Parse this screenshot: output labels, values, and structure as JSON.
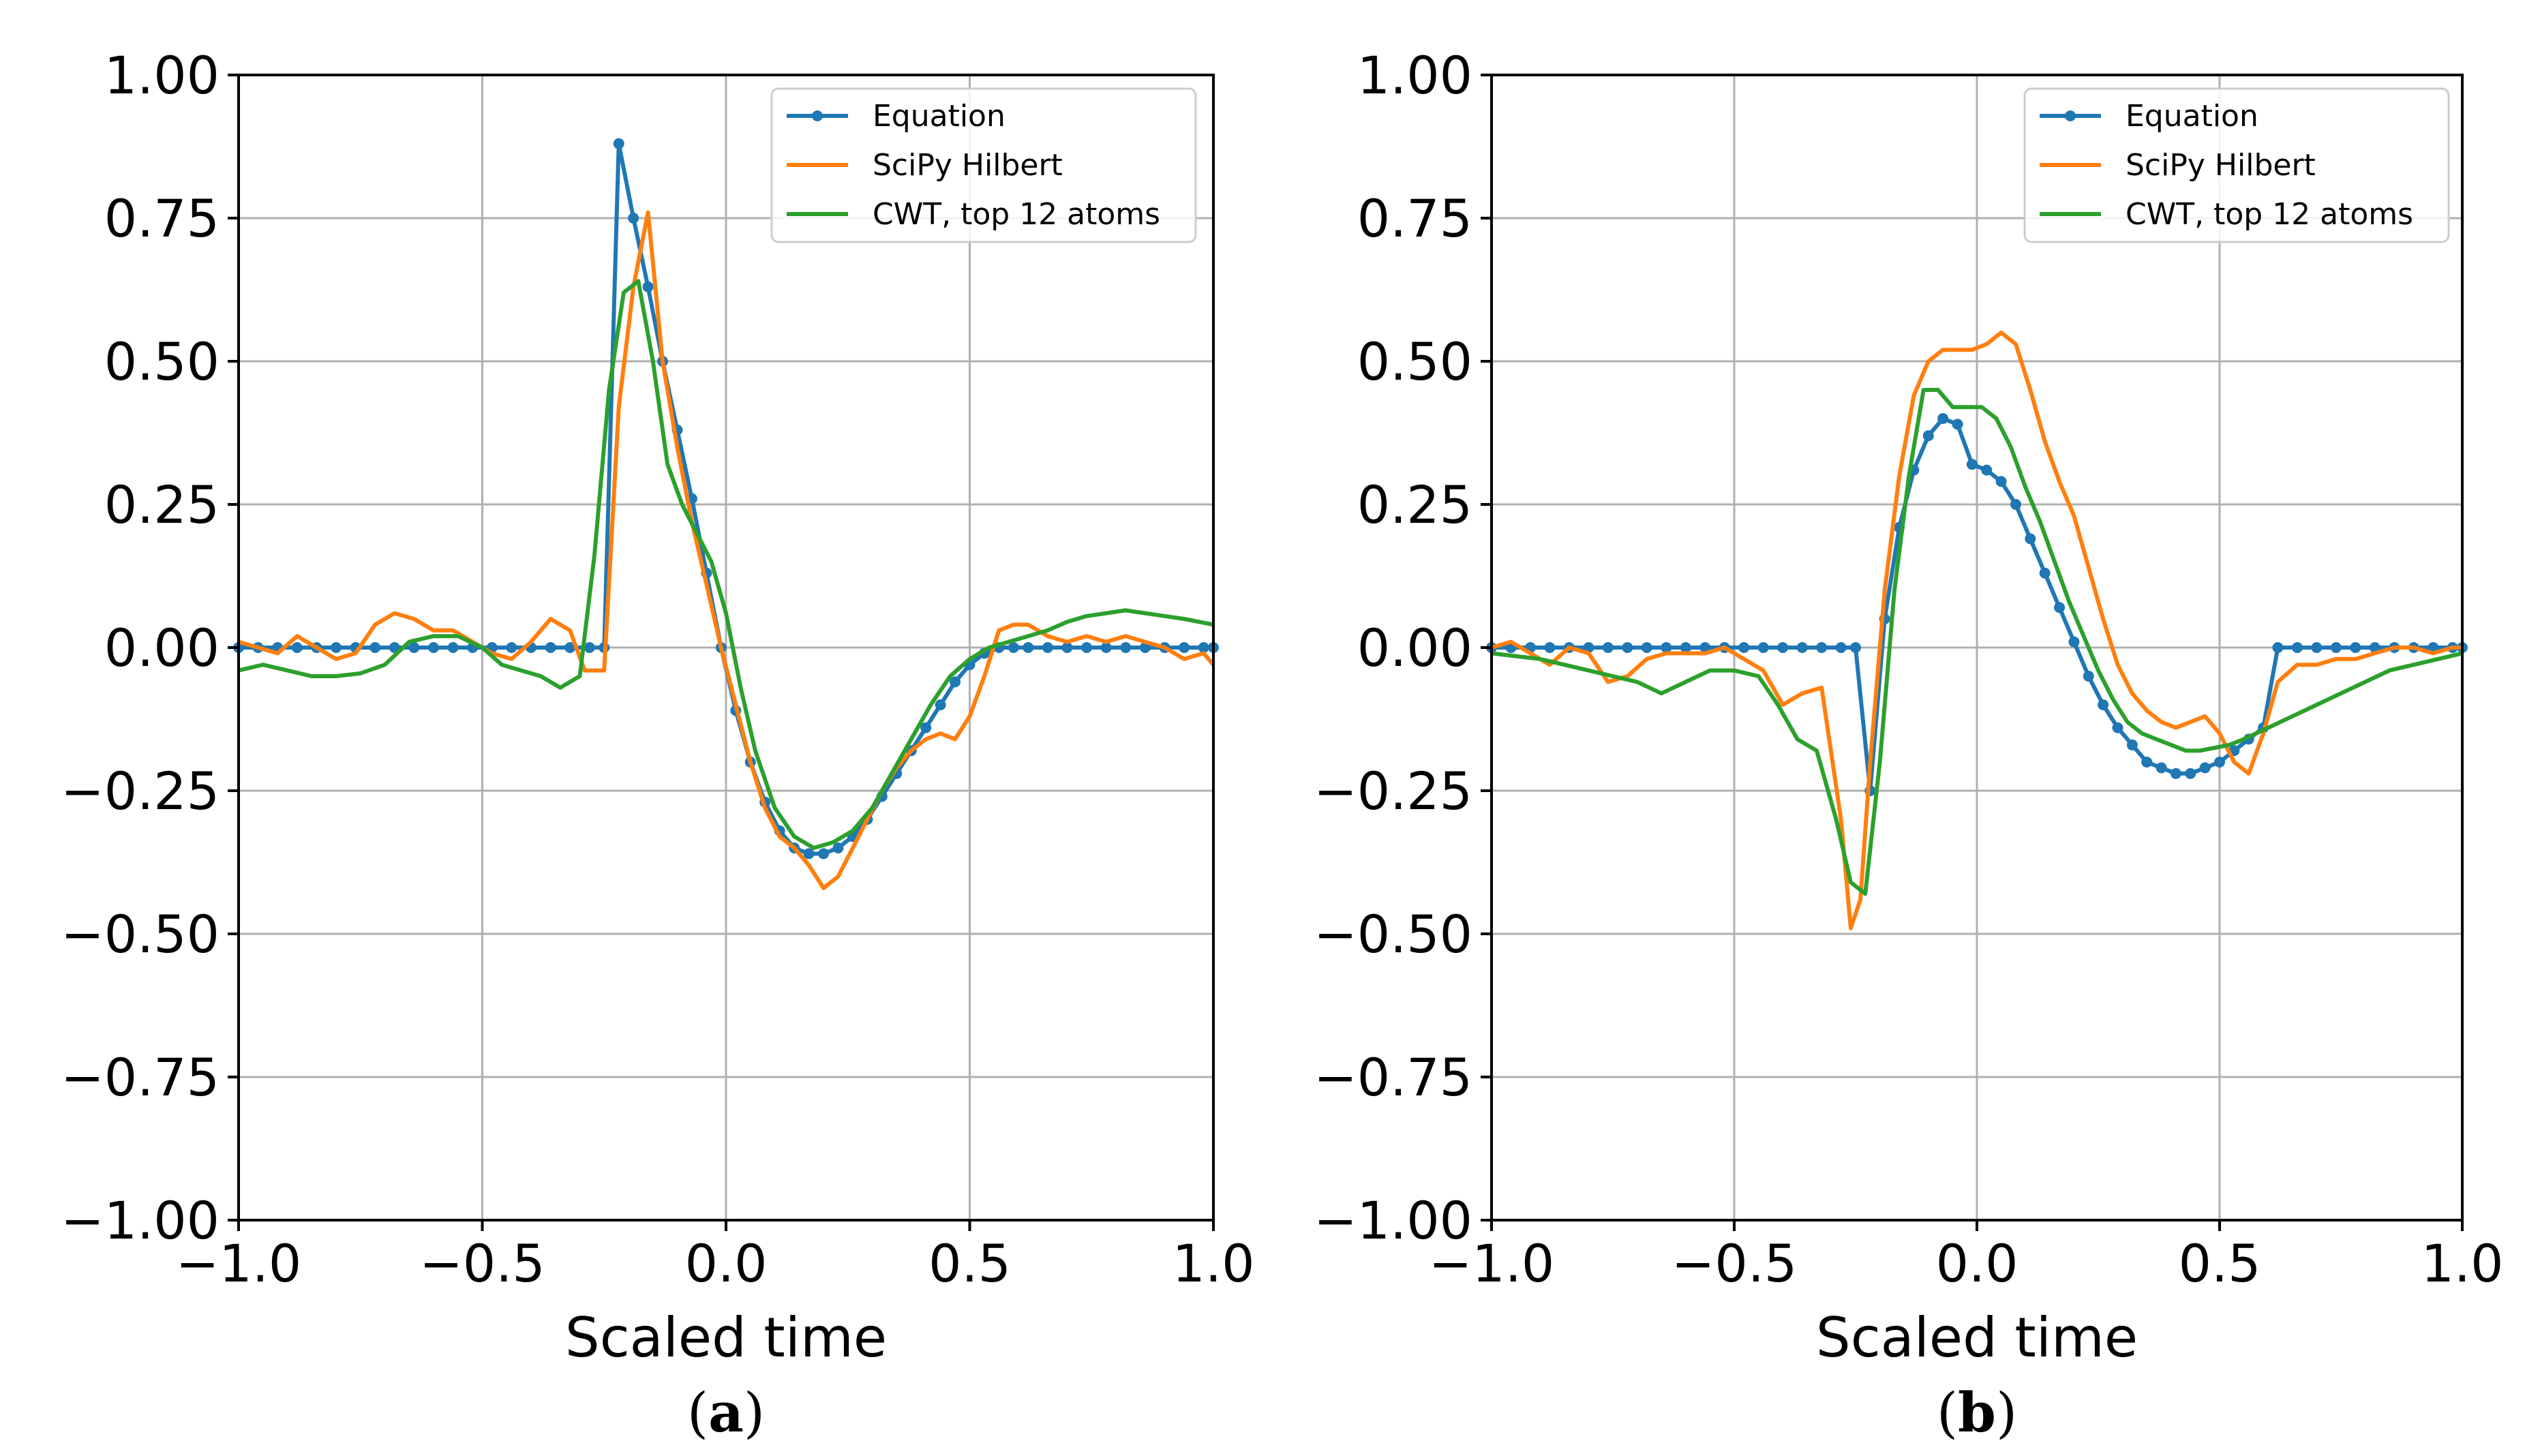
{
  "chart_data": [
    {
      "type": "line",
      "panel_caption": "a",
      "title": "",
      "xlabel": "Scaled time",
      "ylabel": "",
      "xlim": [
        -1.0,
        1.0
      ],
      "ylim": [
        -1.0,
        1.0
      ],
      "xticks": [
        -1.0,
        -0.5,
        0.0,
        0.5,
        1.0
      ],
      "yticks": [
        -1.0,
        -0.75,
        -0.5,
        -0.25,
        0.0,
        0.25,
        0.5,
        0.75,
        1.0
      ],
      "xtick_labels": [
        "−1.0",
        "−0.5",
        "0.0",
        "0.5",
        "1.0"
      ],
      "ytick_labels": [
        "−1.00",
        "−0.75",
        "−0.50",
        "−0.25",
        "0.00",
        "0.25",
        "0.50",
        "0.75",
        "1.00"
      ],
      "grid": true,
      "legend_position": "top-right",
      "series": [
        {
          "name": "Equation",
          "color": "#1f77b4",
          "marker": true,
          "x": [
            -1.0,
            -0.96,
            -0.92,
            -0.88,
            -0.84,
            -0.8,
            -0.76,
            -0.72,
            -0.68,
            -0.64,
            -0.6,
            -0.56,
            -0.52,
            -0.48,
            -0.44,
            -0.4,
            -0.36,
            -0.32,
            -0.28,
            -0.25,
            -0.22,
            -0.19,
            -0.16,
            -0.13,
            -0.1,
            -0.07,
            -0.04,
            -0.01,
            0.02,
            0.05,
            0.08,
            0.11,
            0.14,
            0.17,
            0.2,
            0.23,
            0.26,
            0.29,
            0.32,
            0.35,
            0.38,
            0.41,
            0.44,
            0.47,
            0.5,
            0.53,
            0.56,
            0.59,
            0.62,
            0.66,
            0.7,
            0.74,
            0.78,
            0.82,
            0.86,
            0.9,
            0.94,
            0.98,
            1.0
          ],
          "y": [
            0,
            0,
            0,
            0,
            0,
            0,
            0,
            0,
            0,
            0,
            0,
            0,
            0,
            0,
            0,
            0,
            0,
            0,
            0,
            0,
            0.88,
            0.75,
            0.63,
            0.5,
            0.38,
            0.26,
            0.13,
            0.0,
            -0.11,
            -0.2,
            -0.27,
            -0.32,
            -0.35,
            -0.36,
            -0.36,
            -0.35,
            -0.33,
            -0.3,
            -0.26,
            -0.22,
            -0.18,
            -0.14,
            -0.1,
            -0.06,
            -0.03,
            -0.01,
            0,
            0,
            0,
            0,
            0,
            0,
            0,
            0,
            0,
            0,
            0,
            0,
            0
          ]
        },
        {
          "name": "SciPy Hilbert",
          "color": "#ff7f0e",
          "marker": false,
          "x": [
            -1.0,
            -0.96,
            -0.92,
            -0.88,
            -0.84,
            -0.8,
            -0.76,
            -0.72,
            -0.68,
            -0.64,
            -0.6,
            -0.56,
            -0.52,
            -0.48,
            -0.44,
            -0.4,
            -0.36,
            -0.32,
            -0.29,
            -0.25,
            -0.22,
            -0.19,
            -0.16,
            -0.13,
            -0.1,
            -0.07,
            -0.04,
            -0.01,
            0.02,
            0.05,
            0.08,
            0.11,
            0.14,
            0.17,
            0.2,
            0.23,
            0.26,
            0.29,
            0.32,
            0.35,
            0.38,
            0.41,
            0.44,
            0.47,
            0.5,
            0.53,
            0.56,
            0.59,
            0.62,
            0.66,
            0.7,
            0.74,
            0.78,
            0.82,
            0.86,
            0.9,
            0.94,
            0.98,
            1.0
          ],
          "y": [
            0.01,
            0.0,
            -0.01,
            0.02,
            0.0,
            -0.02,
            -0.01,
            0.04,
            0.06,
            0.05,
            0.03,
            0.03,
            0.01,
            -0.01,
            -0.02,
            0.01,
            0.05,
            0.03,
            -0.04,
            -0.04,
            0.42,
            0.63,
            0.76,
            0.5,
            0.35,
            0.22,
            0.11,
            0.0,
            -0.1,
            -0.2,
            -0.28,
            -0.33,
            -0.35,
            -0.38,
            -0.42,
            -0.4,
            -0.35,
            -0.3,
            -0.25,
            -0.21,
            -0.18,
            -0.16,
            -0.15,
            -0.16,
            -0.12,
            -0.05,
            0.03,
            0.04,
            0.04,
            0.02,
            0.01,
            0.02,
            0.01,
            0.02,
            0.01,
            0.0,
            -0.02,
            -0.01,
            -0.03
          ]
        },
        {
          "name": "CWT, top 12 atoms",
          "color": "#2ca02c",
          "marker": false,
          "x": [
            -1.0,
            -0.95,
            -0.9,
            -0.85,
            -0.8,
            -0.75,
            -0.7,
            -0.65,
            -0.6,
            -0.55,
            -0.5,
            -0.46,
            -0.42,
            -0.38,
            -0.34,
            -0.3,
            -0.27,
            -0.24,
            -0.21,
            -0.18,
            -0.15,
            -0.12,
            -0.09,
            -0.06,
            -0.03,
            0.0,
            0.03,
            0.06,
            0.1,
            0.14,
            0.18,
            0.22,
            0.26,
            0.3,
            0.34,
            0.38,
            0.42,
            0.46,
            0.5,
            0.54,
            0.58,
            0.62,
            0.66,
            0.7,
            0.74,
            0.78,
            0.82,
            0.86,
            0.9,
            0.94,
            1.0
          ],
          "y": [
            -0.04,
            -0.03,
            -0.04,
            -0.05,
            -0.05,
            -0.045,
            -0.03,
            0.01,
            0.02,
            0.02,
            0.0,
            -0.03,
            -0.04,
            -0.05,
            -0.07,
            -0.05,
            0.16,
            0.45,
            0.62,
            0.64,
            0.5,
            0.32,
            0.25,
            0.2,
            0.15,
            0.06,
            -0.07,
            -0.18,
            -0.28,
            -0.33,
            -0.35,
            -0.34,
            -0.32,
            -0.28,
            -0.22,
            -0.16,
            -0.1,
            -0.05,
            -0.02,
            0.0,
            0.01,
            0.02,
            0.03,
            0.045,
            0.055,
            0.06,
            0.065,
            0.06,
            0.055,
            0.05,
            0.04
          ]
        }
      ]
    },
    {
      "type": "line",
      "panel_caption": "b",
      "title": "",
      "xlabel": "Scaled time",
      "ylabel": "",
      "xlim": [
        -1.0,
        1.0
      ],
      "ylim": [
        -1.0,
        1.0
      ],
      "xticks": [
        -1.0,
        -0.5,
        0.0,
        0.5,
        1.0
      ],
      "yticks": [
        -1.0,
        -0.75,
        -0.5,
        -0.25,
        0.0,
        0.25,
        0.5,
        0.75,
        1.0
      ],
      "xtick_labels": [
        "−1.0",
        "−0.5",
        "0.0",
        "0.5",
        "1.0"
      ],
      "ytick_labels": [
        "−1.00",
        "−0.75",
        "−0.50",
        "−0.25",
        "0.00",
        "0.25",
        "0.50",
        "0.75",
        "1.00"
      ],
      "grid": true,
      "legend_position": "top-right",
      "series": [
        {
          "name": "Equation",
          "color": "#1f77b4",
          "marker": true,
          "x": [
            -1.0,
            -0.96,
            -0.92,
            -0.88,
            -0.84,
            -0.8,
            -0.76,
            -0.72,
            -0.68,
            -0.64,
            -0.6,
            -0.56,
            -0.52,
            -0.48,
            -0.44,
            -0.4,
            -0.36,
            -0.32,
            -0.28,
            -0.25,
            -0.22,
            -0.19,
            -0.16,
            -0.13,
            -0.1,
            -0.07,
            -0.04,
            -0.01,
            0.02,
            0.05,
            0.08,
            0.11,
            0.14,
            0.17,
            0.2,
            0.23,
            0.26,
            0.29,
            0.32,
            0.35,
            0.38,
            0.41,
            0.44,
            0.47,
            0.5,
            0.53,
            0.56,
            0.59,
            0.62,
            0.66,
            0.7,
            0.74,
            0.78,
            0.82,
            0.86,
            0.9,
            0.94,
            0.98,
            1.0
          ],
          "y": [
            0,
            0,
            0,
            0,
            0,
            0,
            0,
            0,
            0,
            0,
            0,
            0,
            0,
            0,
            0,
            0,
            0,
            0,
            0,
            0,
            -0.25,
            0.05,
            0.21,
            0.31,
            0.37,
            0.4,
            0.39,
            0.32,
            0.31,
            0.29,
            0.25,
            0.19,
            0.13,
            0.07,
            0.01,
            -0.05,
            -0.1,
            -0.14,
            -0.17,
            -0.2,
            -0.21,
            -0.22,
            -0.22,
            -0.21,
            -0.2,
            -0.18,
            -0.16,
            -0.14,
            0.0,
            0,
            0,
            0,
            0,
            0,
            0,
            0,
            0,
            0,
            0
          ]
        },
        {
          "name": "SciPy Hilbert",
          "color": "#ff7f0e",
          "marker": false,
          "x": [
            -1.0,
            -0.96,
            -0.92,
            -0.88,
            -0.84,
            -0.8,
            -0.76,
            -0.72,
            -0.68,
            -0.64,
            -0.6,
            -0.56,
            -0.52,
            -0.48,
            -0.44,
            -0.4,
            -0.36,
            -0.32,
            -0.28,
            -0.26,
            -0.24,
            -0.22,
            -0.19,
            -0.16,
            -0.13,
            -0.1,
            -0.07,
            -0.04,
            -0.01,
            0.02,
            0.05,
            0.08,
            0.11,
            0.14,
            0.17,
            0.2,
            0.23,
            0.26,
            0.29,
            0.32,
            0.35,
            0.38,
            0.41,
            0.44,
            0.47,
            0.5,
            0.53,
            0.56,
            0.59,
            0.62,
            0.66,
            0.7,
            0.74,
            0.78,
            0.82,
            0.86,
            0.9,
            0.94,
            0.98,
            1.0
          ],
          "y": [
            0.0,
            0.01,
            -0.01,
            -0.03,
            0.0,
            -0.01,
            -0.06,
            -0.05,
            -0.02,
            -0.01,
            -0.01,
            -0.01,
            0.0,
            -0.02,
            -0.04,
            -0.1,
            -0.08,
            -0.07,
            -0.3,
            -0.49,
            -0.44,
            -0.2,
            0.1,
            0.3,
            0.44,
            0.5,
            0.52,
            0.52,
            0.52,
            0.53,
            0.55,
            0.53,
            0.45,
            0.36,
            0.29,
            0.23,
            0.14,
            0.05,
            -0.03,
            -0.08,
            -0.11,
            -0.13,
            -0.14,
            -0.13,
            -0.12,
            -0.15,
            -0.2,
            -0.22,
            -0.15,
            -0.06,
            -0.03,
            -0.03,
            -0.02,
            -0.02,
            -0.01,
            0.0,
            0.0,
            -0.01,
            0.0,
            0.0
          ]
        },
        {
          "name": "CWT, top 12 atoms",
          "color": "#2ca02c",
          "marker": false,
          "x": [
            -1.0,
            -0.95,
            -0.9,
            -0.85,
            -0.8,
            -0.75,
            -0.7,
            -0.65,
            -0.6,
            -0.55,
            -0.5,
            -0.45,
            -0.41,
            -0.37,
            -0.33,
            -0.29,
            -0.26,
            -0.23,
            -0.2,
            -0.17,
            -0.14,
            -0.11,
            -0.08,
            -0.05,
            -0.02,
            0.01,
            0.04,
            0.07,
            0.1,
            0.13,
            0.16,
            0.19,
            0.22,
            0.25,
            0.28,
            0.31,
            0.34,
            0.37,
            0.4,
            0.43,
            0.46,
            0.49,
            0.52,
            0.55,
            0.6,
            0.65,
            0.7,
            0.75,
            0.8,
            0.85,
            0.9,
            0.95,
            1.0
          ],
          "y": [
            -0.01,
            -0.015,
            -0.02,
            -0.03,
            -0.04,
            -0.05,
            -0.06,
            -0.08,
            -0.06,
            -0.04,
            -0.04,
            -0.05,
            -0.1,
            -0.16,
            -0.18,
            -0.3,
            -0.41,
            -0.43,
            -0.2,
            0.1,
            0.3,
            0.45,
            0.45,
            0.42,
            0.42,
            0.42,
            0.4,
            0.35,
            0.28,
            0.22,
            0.15,
            0.08,
            0.02,
            -0.04,
            -0.09,
            -0.13,
            -0.15,
            -0.16,
            -0.17,
            -0.18,
            -0.18,
            -0.175,
            -0.17,
            -0.16,
            -0.14,
            -0.12,
            -0.1,
            -0.08,
            -0.06,
            -0.04,
            -0.03,
            -0.02,
            -0.01
          ]
        }
      ]
    }
  ]
}
